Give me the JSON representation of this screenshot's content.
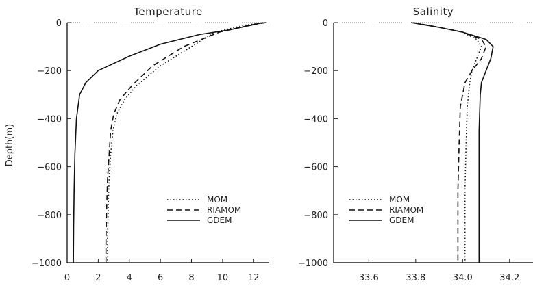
{
  "ylabel": "Depth(m)",
  "chart_data": [
    {
      "type": "line",
      "title": "Temperature",
      "xlabel": "",
      "ylabel": "Depth(m)",
      "xlim": [
        0,
        13
      ],
      "ylim": [
        -1000,
        0
      ],
      "xticks": [
        0,
        2,
        4,
        6,
        8,
        10,
        12
      ],
      "yticks": [
        0,
        -200,
        -400,
        -600,
        -800,
        -1000
      ],
      "legend_position": "lower-right",
      "series": [
        {
          "name": "MOM",
          "style": "dotted",
          "x": [
            12.7,
            11.5,
            9.5,
            8.0,
            6.0,
            4.5,
            3.7,
            3.2,
            2.95,
            2.8,
            2.7,
            2.65,
            2.6,
            2.6
          ],
          "y": [
            0,
            -10,
            -40,
            -100,
            -180,
            -260,
            -320,
            -380,
            -450,
            -550,
            -650,
            -750,
            -900,
            -1000
          ]
        },
        {
          "name": "RIAMOM",
          "style": "dashed",
          "x": [
            12.8,
            11.8,
            9.8,
            7.5,
            5.5,
            4.2,
            3.4,
            3.0,
            2.8,
            2.7,
            2.6,
            2.55,
            2.5,
            2.5
          ],
          "y": [
            0,
            -10,
            -40,
            -100,
            -180,
            -260,
            -320,
            -380,
            -450,
            -550,
            -650,
            -750,
            -900,
            -1000
          ]
        },
        {
          "name": "GDEM",
          "style": "solid",
          "x": [
            12.6,
            10.5,
            8.5,
            6.0,
            4.0,
            2.0,
            1.2,
            0.8,
            0.6,
            0.5,
            0.45,
            0.42,
            0.4
          ],
          "y": [
            0,
            -30,
            -50,
            -90,
            -140,
            -200,
            -250,
            -300,
            -400,
            -550,
            -700,
            -850,
            -1000
          ]
        }
      ]
    },
    {
      "type": "line",
      "title": "Salinity",
      "xlabel": "",
      "ylabel": "",
      "xlim": [
        33.45,
        34.3
      ],
      "ylim": [
        -1000,
        0
      ],
      "xticks": [
        "33.6",
        "33.8",
        "34.0",
        "34.2"
      ],
      "xtick_values": [
        33.6,
        33.8,
        34.0,
        34.2
      ],
      "yticks": [
        0,
        -200,
        -400,
        -600,
        -800,
        -1000
      ],
      "legend_position": "lower-left",
      "series": [
        {
          "name": "MOM",
          "style": "dotted",
          "x": [
            33.79,
            33.9,
            34.0,
            34.06,
            34.08,
            34.06,
            34.04,
            34.03,
            34.02,
            34.015,
            34.01,
            34.01
          ],
          "y": [
            0,
            -20,
            -40,
            -70,
            -100,
            -150,
            -200,
            -250,
            -350,
            -500,
            -700,
            -1000
          ]
        },
        {
          "name": "RIAMOM",
          "style": "dashed",
          "x": [
            33.79,
            33.9,
            34.0,
            34.08,
            34.1,
            34.08,
            34.04,
            34.01,
            33.99,
            33.985,
            33.98,
            33.98
          ],
          "y": [
            0,
            -20,
            -40,
            -70,
            -100,
            -150,
            -200,
            -250,
            -350,
            -500,
            -700,
            -1000
          ]
        },
        {
          "name": "GDEM",
          "style": "solid",
          "x": [
            33.78,
            33.9,
            34.0,
            34.1,
            34.13,
            34.12,
            34.1,
            34.08,
            34.075,
            34.07,
            34.07,
            34.07
          ],
          "y": [
            0,
            -20,
            -40,
            -70,
            -100,
            -150,
            -200,
            -250,
            -300,
            -450,
            -700,
            -1000
          ]
        }
      ]
    }
  ]
}
